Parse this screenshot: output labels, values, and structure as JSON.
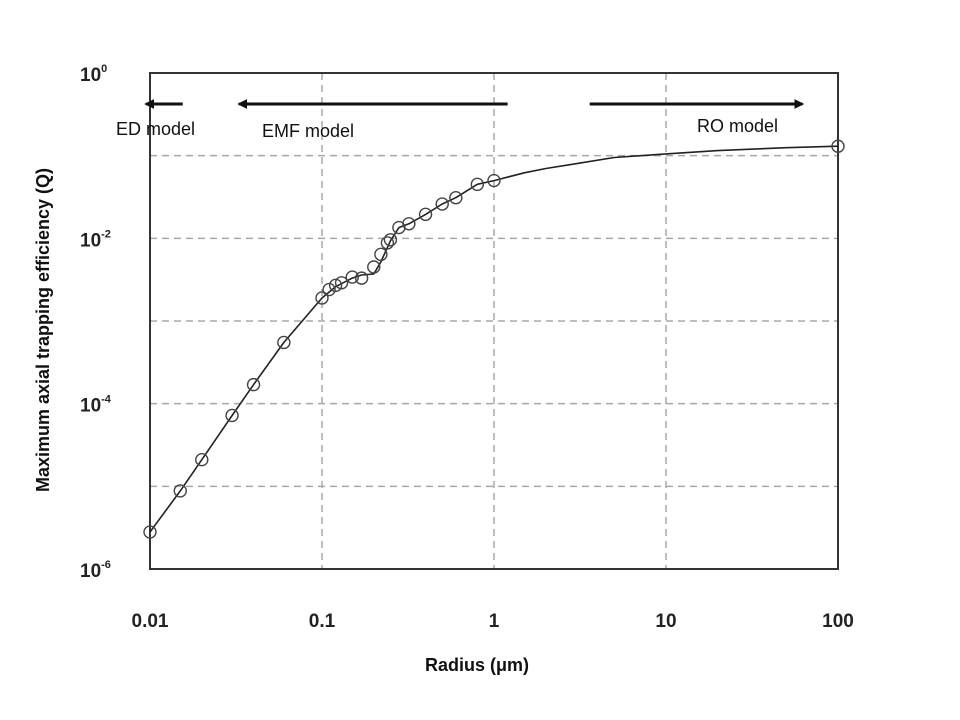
{
  "chart_data": {
    "type": "scatter",
    "xlabel": "Radius (μm)",
    "ylabel": "Maximum axial trapping efficiency (Q)",
    "xscale": "log",
    "yscale": "log",
    "xlim": [
      0.01,
      100
    ],
    "ylim": [
      1e-06,
      1
    ],
    "grid": true,
    "x_ticks": [
      "0.01",
      "0.1",
      "1",
      "10",
      "100"
    ],
    "y_ticks": [
      {
        "value": 1,
        "base": "10",
        "exp": "0"
      },
      {
        "value": 0.01,
        "base": "10",
        "exp": "-2"
      },
      {
        "value": 0.0001,
        "base": "10",
        "exp": "-4"
      },
      {
        "value": 1e-06,
        "base": "10",
        "exp": "-6"
      }
    ],
    "series": [
      {
        "style": "markers",
        "x": [
          0.01,
          0.015,
          0.02,
          0.03,
          0.04,
          0.06,
          0.1,
          0.11,
          0.12,
          0.13,
          0.15,
          0.17,
          0.2,
          0.22,
          0.24,
          0.25,
          0.28,
          0.32,
          0.4,
          0.5,
          0.6,
          0.8,
          1.0,
          100
        ],
        "y": [
          2.8e-06,
          8.8e-06,
          2.1e-05,
          7.2e-05,
          0.00017,
          0.00055,
          0.0019,
          0.0024,
          0.0027,
          0.0029,
          0.0034,
          0.0033,
          0.0045,
          0.0064,
          0.0088,
          0.0096,
          0.0135,
          0.015,
          0.0195,
          0.026,
          0.031,
          0.045,
          0.05,
          0.13
        ]
      },
      {
        "style": "line",
        "x": [
          0.01,
          0.015,
          0.02,
          0.03,
          0.04,
          0.06,
          0.1,
          0.12,
          0.15,
          0.17,
          0.2,
          0.22,
          0.25,
          0.28,
          0.32,
          0.4,
          0.5,
          0.6,
          0.8,
          1,
          1.5,
          2,
          3,
          5,
          10,
          20,
          50,
          100
        ],
        "y": [
          2.8e-06,
          8.8e-06,
          2.1e-05,
          7.2e-05,
          0.00017,
          0.00055,
          0.0019,
          0.0026,
          0.0033,
          0.0036,
          0.0037,
          0.0052,
          0.0093,
          0.0135,
          0.015,
          0.0195,
          0.026,
          0.031,
          0.045,
          0.05,
          0.062,
          0.07,
          0.08,
          0.095,
          0.105,
          0.115,
          0.125,
          0.13
        ]
      }
    ],
    "annotations": [
      {
        "text": "ED model",
        "arrow": "left",
        "x_from": 0.0155,
        "x_to": 0.0095,
        "y": 0.55
      },
      {
        "text": "EMF model",
        "arrow": "left",
        "x_from": 1.2,
        "x_to": 0.033,
        "y": 0.55
      },
      {
        "text": "RO model",
        "arrow": "right",
        "x_from": 3.6,
        "x_to": 62,
        "y": 0.55
      }
    ],
    "colors": {
      "line": "#222222",
      "grid": "#a8a8a8",
      "frame": "#333333"
    }
  }
}
